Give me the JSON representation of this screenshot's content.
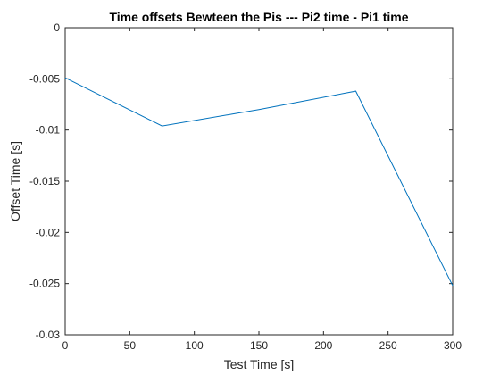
{
  "chart_data": {
    "type": "line",
    "title": "Time offsets Bewteen the Pis --- Pi2 time - Pi1 time",
    "xlabel": "Test Time [s]",
    "ylabel": "Offset Time [s]",
    "xlim": [
      0,
      300
    ],
    "ylim": [
      -0.03,
      0
    ],
    "xticks": [
      0,
      50,
      100,
      150,
      200,
      250,
      300
    ],
    "xtick_labels": [
      "0",
      "50",
      "100",
      "150",
      "200",
      "250",
      "300"
    ],
    "yticks": [
      0,
      -0.005,
      -0.01,
      -0.015,
      -0.02,
      -0.025,
      -0.03
    ],
    "ytick_labels": [
      "0",
      "-0.005",
      "-0.01",
      "-0.015",
      "-0.02",
      "-0.025",
      "-0.03"
    ],
    "grid": false,
    "series": [
      {
        "x": [
          0,
          75,
          150,
          225,
          300
        ],
        "y": [
          -0.0049,
          -0.0096,
          -0.008,
          -0.0062,
          -0.0252
        ],
        "color": "#0072BD"
      }
    ]
  }
}
